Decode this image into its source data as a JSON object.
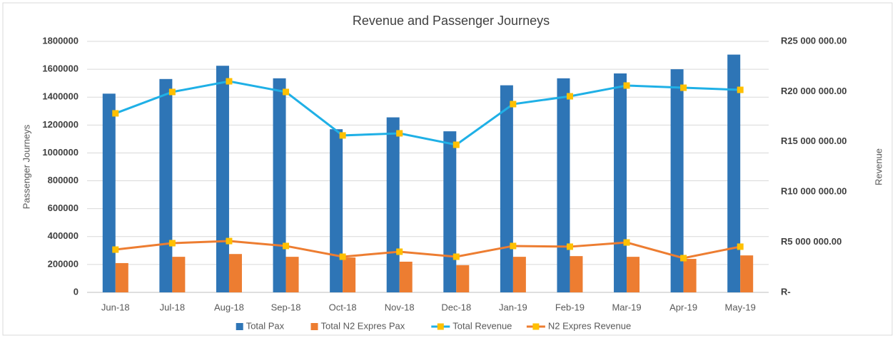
{
  "chart_data": {
    "type": "bar",
    "title": "Revenue and Passenger Journeys",
    "ylabel": "Passenger Journeys",
    "y2label": "Revenue",
    "categories": [
      "Jun-18",
      "Jul-18",
      "Aug-18",
      "Sep-18",
      "Oct-18",
      "Nov-18",
      "Dec-18",
      "Jan-19",
      "Feb-19",
      "Mar-19",
      "Apr-19",
      "May-19"
    ],
    "ylim": [
      0,
      1800000
    ],
    "yticks": [
      0,
      200000,
      400000,
      600000,
      800000,
      1000000,
      1200000,
      1400000,
      1600000,
      1800000
    ],
    "y2lim": [
      0,
      25000000
    ],
    "y2ticks": [
      {
        "value": 0,
        "label": "R-"
      },
      {
        "value": 5000000,
        "label": "R5 000 000.00"
      },
      {
        "value": 10000000,
        "label": "R10 000 000.00"
      },
      {
        "value": 15000000,
        "label": "R15 000 000.00"
      },
      {
        "value": 20000000,
        "label": "R20 000 000.00"
      },
      {
        "value": 25000000,
        "label": "R25 000 000.00"
      }
    ],
    "grid": true,
    "legend": "bottom",
    "series": [
      {
        "name": "Total Pax",
        "type": "bar",
        "color": "#2e75b6",
        "values": [
          1425000,
          1530000,
          1625000,
          1535000,
          1170000,
          1255000,
          1155000,
          1485000,
          1535000,
          1570000,
          1600000,
          1705000
        ]
      },
      {
        "name": "Total N2 Expres Pax",
        "type": "bar",
        "color": "#ed7d31",
        "values": [
          210000,
          255000,
          275000,
          255000,
          250000,
          220000,
          195000,
          255000,
          260000,
          255000,
          240000,
          265000
        ]
      },
      {
        "name": "Total Revenue",
        "type": "line",
        "axis": "y2",
        "color": "#1fb0e6",
        "marker_color": "#ffc000",
        "values": [
          17830000,
          19960000,
          21020000,
          19960000,
          15630000,
          15840000,
          14700000,
          18750000,
          19530000,
          20600000,
          20380000,
          20170000
        ]
      },
      {
        "name": "N2 Expres Revenue",
        "type": "line",
        "axis": "y2",
        "color": "#ed7d31",
        "marker_color": "#ffc000",
        "values": [
          4260000,
          4900000,
          5110000,
          4620000,
          3550000,
          4050000,
          3550000,
          4620000,
          4550000,
          4970000,
          3410000,
          4550000
        ]
      }
    ]
  }
}
